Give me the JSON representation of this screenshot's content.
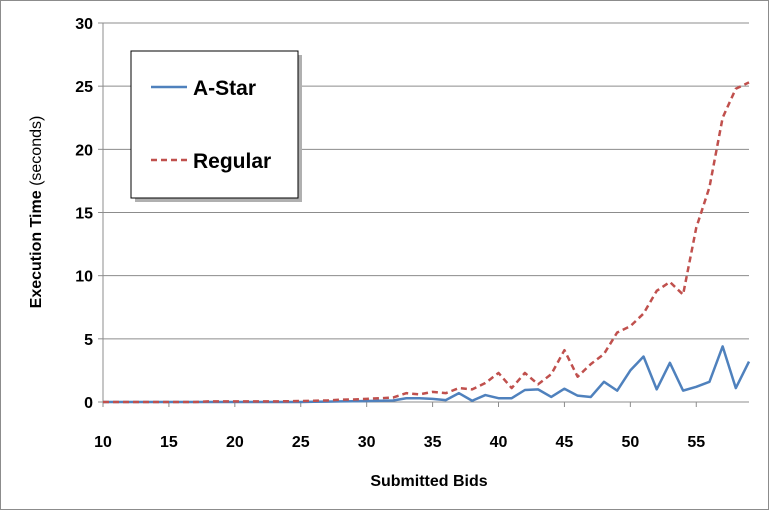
{
  "chart_data": {
    "type": "line",
    "title": "",
    "xlabel": "Submitted Bids",
    "ylabel_main": "Execution Time",
    "ylabel_unit": "(seconds)",
    "xlim": [
      10,
      59
    ],
    "ylim": [
      0,
      30
    ],
    "x_ticks": [
      10,
      15,
      20,
      25,
      30,
      35,
      40,
      45,
      50,
      55
    ],
    "y_ticks": [
      0,
      5,
      10,
      15,
      20,
      25,
      30
    ],
    "grid": "horizontal",
    "legend_position": "top-left",
    "x": [
      10,
      11,
      12,
      13,
      14,
      15,
      16,
      17,
      18,
      19,
      20,
      21,
      22,
      23,
      24,
      25,
      26,
      27,
      28,
      29,
      30,
      31,
      32,
      33,
      34,
      35,
      36,
      37,
      38,
      39,
      40,
      41,
      42,
      43,
      44,
      45,
      46,
      47,
      48,
      49,
      50,
      51,
      52,
      53,
      54,
      55,
      56,
      57,
      58,
      59
    ],
    "series": [
      {
        "name": "A-Star",
        "color": "#4f81bd",
        "dash": "solid",
        "values": [
          0,
          0,
          0,
          0,
          0,
          0,
          0,
          0,
          0,
          0,
          0,
          0,
          0,
          0,
          0,
          0,
          0.02,
          0.03,
          0.05,
          0.06,
          0.08,
          0.1,
          0.12,
          0.3,
          0.3,
          0.25,
          0.15,
          0.7,
          0.1,
          0.55,
          0.3,
          0.3,
          0.95,
          1.0,
          0.4,
          1.05,
          0.5,
          0.4,
          1.6,
          0.9,
          2.5,
          3.6,
          1.0,
          3.1,
          0.9,
          1.2,
          1.6,
          4.4,
          1.1,
          3.2
        ]
      },
      {
        "name": "Regular",
        "color": "#c0504d",
        "dash": "dashed",
        "values": [
          0,
          0,
          0,
          0,
          0,
          0,
          0,
          0,
          0.05,
          0.05,
          0.05,
          0.05,
          0.05,
          0.05,
          0.06,
          0.08,
          0.1,
          0.12,
          0.18,
          0.2,
          0.25,
          0.3,
          0.35,
          0.7,
          0.6,
          0.8,
          0.7,
          1.1,
          1.0,
          1.5,
          2.3,
          1.1,
          2.3,
          1.4,
          2.2,
          4.1,
          2.0,
          3.0,
          3.8,
          5.5,
          6.0,
          7.0,
          8.8,
          9.5,
          8.5,
          13.8,
          17.0,
          22.5,
          24.8,
          25.3
        ]
      }
    ]
  }
}
